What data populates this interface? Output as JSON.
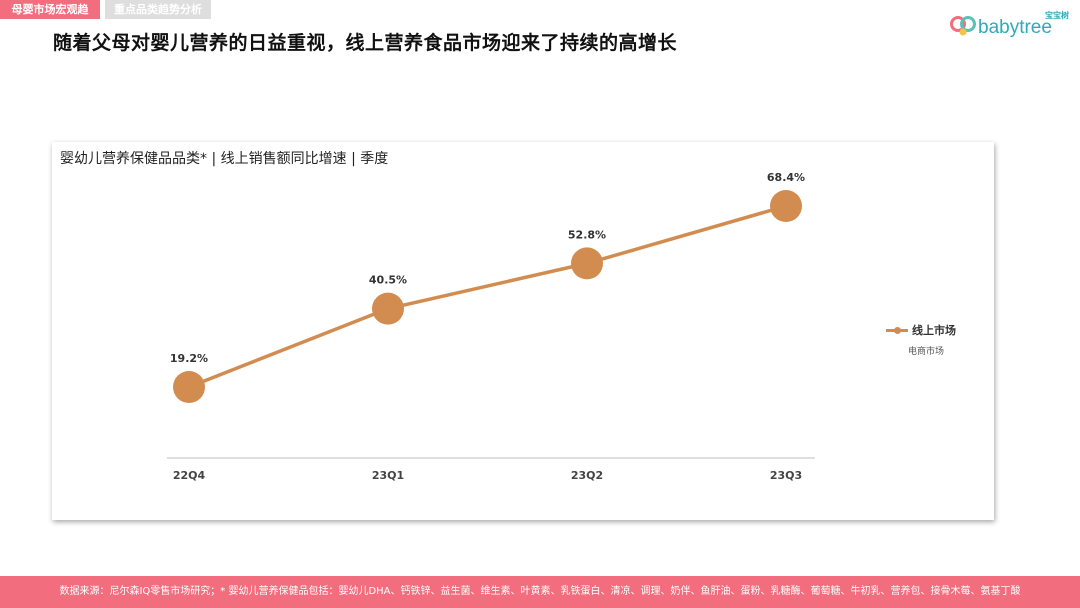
{
  "header": {
    "tabs": [
      {
        "label": "母婴市场宏观趋势",
        "active": true
      },
      {
        "label": "重点品类趋势分析",
        "active": false
      }
    ],
    "headline": "随着父母对婴儿营养的日益重视，线上营养食品市场迎来了持续的高增长",
    "logo": {
      "cn": "宝宝树",
      "en": "babytree",
      "icon": "babytree-logo-icon"
    }
  },
  "colors": {
    "accent": "#f26d7d",
    "series": "#d28c50",
    "tab_inactive": "#dedede"
  },
  "chart_data": {
    "type": "line",
    "title": "婴幼儿营养保健品品类* | 线上销售额同比增速 | 季度",
    "categories": [
      "22Q4",
      "23Q1",
      "23Q2",
      "23Q3"
    ],
    "series": [
      {
        "name": "线上市场",
        "values": [
          19.2,
          40.5,
          52.8,
          68.4
        ],
        "labels": [
          "19.2%",
          "40.5%",
          "52.8%",
          "68.4%"
        ]
      }
    ],
    "value_unit": "%",
    "legend": {
      "position": "right",
      "label": "线上市场",
      "sublabel": "电商市场"
    },
    "grid": false,
    "ylim": [
      0,
      80
    ]
  },
  "footer": {
    "text": "数据来源：尼尔森IQ零售市场研究；* 婴幼儿营养保健品包括：婴幼儿DHA、钙铁锌、益生菌、维生素、叶黄素、乳铁蛋白、清凉、调理、奶伴、鱼肝油、蛋粉、乳糖酶、葡萄糖、牛初乳、营养包、接骨木莓、氨基丁酸"
  }
}
